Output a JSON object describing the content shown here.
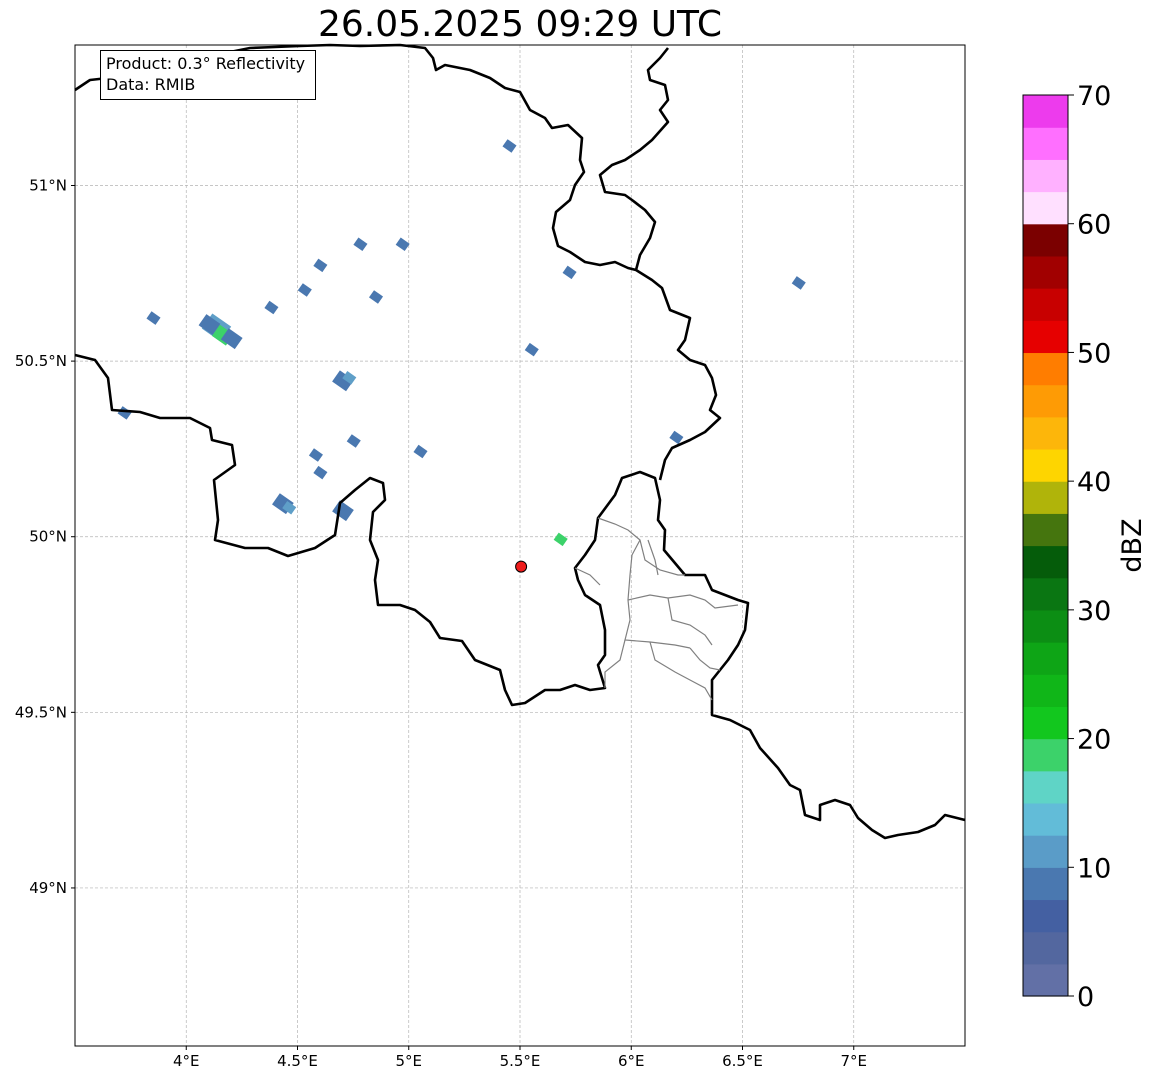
{
  "title": "26.05.2025 09:29 UTC",
  "info_box": {
    "product": "Product: 0.3° Reflectivity",
    "data_source": "Data: RMIB"
  },
  "map": {
    "lon_range": [
      3.5,
      7.5
    ],
    "lat_range": [
      48.55,
      51.4
    ],
    "lon_ticks": [
      {
        "value": 4.0,
        "label": "4°E"
      },
      {
        "value": 4.5,
        "label": "4.5°E"
      },
      {
        "value": 5.0,
        "label": "5°E"
      },
      {
        "value": 5.5,
        "label": "5.5°E"
      },
      {
        "value": 6.0,
        "label": "6°E"
      },
      {
        "value": 6.5,
        "label": "6.5°E"
      },
      {
        "value": 7.0,
        "label": "7°E"
      }
    ],
    "lat_ticks": [
      {
        "value": 51.0,
        "label": "51°N"
      },
      {
        "value": 50.5,
        "label": "50.5°N"
      },
      {
        "value": 50.0,
        "label": "50°N"
      },
      {
        "value": 49.5,
        "label": "49.5°N"
      },
      {
        "value": 49.0,
        "label": "49°N"
      }
    ],
    "grid": true,
    "radar_site": {
      "lon": 5.505,
      "lat": 49.915,
      "color": "#ee1c1c"
    },
    "echoes": [
      {
        "lon": 4.13,
        "lat": 50.59,
        "size": 3,
        "color": "#5f9fc8"
      },
      {
        "lon": 4.16,
        "lat": 50.57,
        "size": 2,
        "color": "#3cd26a"
      },
      {
        "lon": 4.1,
        "lat": 50.6,
        "size": 2,
        "color": "#4a78b0"
      },
      {
        "lon": 4.2,
        "lat": 50.56,
        "size": 2,
        "color": "#4a78b0"
      },
      {
        "lon": 4.7,
        "lat": 50.44,
        "size": 2,
        "color": "#4a78b0"
      },
      {
        "lon": 4.73,
        "lat": 50.45,
        "size": 1,
        "color": "#5f9fc8"
      },
      {
        "lon": 4.43,
        "lat": 50.09,
        "size": 2,
        "color": "#4a78b0"
      },
      {
        "lon": 4.46,
        "lat": 50.08,
        "size": 1,
        "color": "#5f9fc8"
      },
      {
        "lon": 4.7,
        "lat": 50.07,
        "size": 2,
        "color": "#4a78b0"
      },
      {
        "lon": 4.6,
        "lat": 50.18,
        "size": 1,
        "color": "#4a78b0"
      },
      {
        "lon": 4.58,
        "lat": 50.23,
        "size": 1,
        "color": "#4a78b0"
      },
      {
        "lon": 4.75,
        "lat": 50.27,
        "size": 1,
        "color": "#4a78b0"
      },
      {
        "lon": 5.05,
        "lat": 50.24,
        "size": 1,
        "color": "#4a78b0"
      },
      {
        "lon": 4.6,
        "lat": 50.77,
        "size": 1,
        "color": "#4a78b0"
      },
      {
        "lon": 4.85,
        "lat": 50.68,
        "size": 1,
        "color": "#4a78b0"
      },
      {
        "lon": 4.97,
        "lat": 50.83,
        "size": 1,
        "color": "#4a78b0"
      },
      {
        "lon": 4.78,
        "lat": 50.83,
        "size": 1,
        "color": "#4a78b0"
      },
      {
        "lon": 4.38,
        "lat": 50.65,
        "size": 1,
        "color": "#4a78b0"
      },
      {
        "lon": 4.53,
        "lat": 50.7,
        "size": 1,
        "color": "#4a78b0"
      },
      {
        "lon": 5.45,
        "lat": 51.11,
        "size": 1,
        "color": "#4a78b0"
      },
      {
        "lon": 5.68,
        "lat": 49.99,
        "size": 1,
        "color": "#3cd26a"
      },
      {
        "lon": 6.2,
        "lat": 50.28,
        "size": 1,
        "color": "#4a78b0"
      },
      {
        "lon": 6.75,
        "lat": 50.72,
        "size": 1,
        "color": "#4a78b0"
      },
      {
        "lon": 5.55,
        "lat": 50.53,
        "size": 1,
        "color": "#4a78b0"
      },
      {
        "lon": 5.72,
        "lat": 50.75,
        "size": 1,
        "color": "#4a78b0"
      },
      {
        "lon": 3.72,
        "lat": 50.35,
        "size": 1,
        "color": "#4a78b0"
      },
      {
        "lon": 3.85,
        "lat": 50.62,
        "size": 1,
        "color": "#4a78b0"
      }
    ]
  },
  "colorbar": {
    "label": "dBZ",
    "min": 0,
    "max": 70,
    "ticks": [
      "0",
      "10",
      "20",
      "30",
      "40",
      "50",
      "60",
      "70"
    ],
    "colors": [
      "#6270a6",
      "#53679f",
      "#4460a2",
      "#4a78b0",
      "#5a9cc8",
      "#62bcd8",
      "#5fd4c6",
      "#3cd26a",
      "#12c71e",
      "#10b618",
      "#0ea516",
      "#0c8e14",
      "#0a7612",
      "#055c0a",
      "#45750e",
      "#b0b40a",
      "#fed500",
      "#fdb60a",
      "#fe9b05",
      "#ff7d00",
      "#e60000",
      "#c80000",
      "#a10000",
      "#7b0000",
      "#ffe0ff",
      "#ffb1ff",
      "#ff6fff",
      "#ed3bed"
    ]
  }
}
